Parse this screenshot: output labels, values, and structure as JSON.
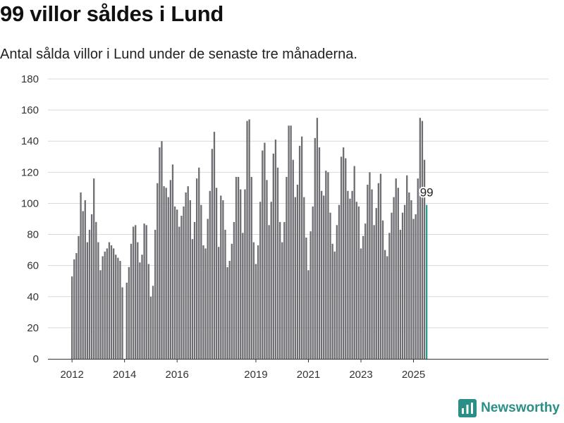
{
  "header": {
    "title": "99 villor såldes i Lund",
    "subtitle": "Antal sålda villor i Lund under de senaste tre månaderna."
  },
  "brand": {
    "name": "Newsworthy",
    "color": "#2a8f87"
  },
  "colors": {
    "bar": "#6e6d72",
    "highlight": "#2a9d8f",
    "grid": "#d9d9d9"
  },
  "chart_data": {
    "type": "bar",
    "title": "99 villor såldes i Lund",
    "subtitle": "Antal sålda villor i Lund under de senaste tre månaderna.",
    "ylim": [
      0,
      180
    ],
    "yticks": [
      0,
      20,
      40,
      60,
      80,
      100,
      120,
      140,
      160,
      180
    ],
    "xtick_labels": [
      "2012",
      "2014",
      "2016",
      "2019",
      "2021",
      "2023",
      "2025"
    ],
    "grid": true,
    "highlight_label": "99",
    "series": [
      {
        "values": [
          53,
          64,
          68,
          79,
          107,
          95,
          102,
          75,
          83,
          93,
          116,
          88,
          75,
          57,
          66,
          69,
          71,
          75,
          73,
          71,
          67,
          65,
          63,
          46,
          0,
          49,
          59,
          74,
          85,
          86,
          75,
          62,
          67,
          87,
          86,
          61,
          40,
          47,
          83,
          113,
          136,
          140,
          111,
          110,
          104,
          115,
          125,
          98,
          96,
          85,
          92,
          98,
          107,
          111,
          102,
          77,
          88,
          116,
          123,
          99,
          73,
          71,
          90,
          108,
          135,
          146,
          110,
          72,
          105,
          102,
          83,
          59,
          63,
          74,
          88,
          117,
          117,
          109,
          81,
          109,
          153,
          154,
          117,
          75,
          61,
          73,
          101,
          134,
          139,
          115,
          86,
          101,
          132,
          141,
          123,
          88,
          75,
          88,
          117,
          150,
          150,
          128,
          104,
          112,
          137,
          143,
          104,
          78,
          57,
          82,
          98,
          142,
          155,
          136,
          108,
          105,
          121,
          120,
          94,
          74,
          69,
          86,
          99,
          130,
          136,
          129,
          108,
          103,
          108,
          124,
          101,
          98,
          71,
          79,
          87,
          112,
          120,
          109,
          86,
          97,
          113,
          119,
          89,
          70,
          66,
          81,
          94,
          104,
          116,
          110,
          83,
          94,
          99,
          118,
          107,
          102,
          90,
          93,
          116,
          155,
          153,
          128,
          99
        ]
      }
    ]
  }
}
